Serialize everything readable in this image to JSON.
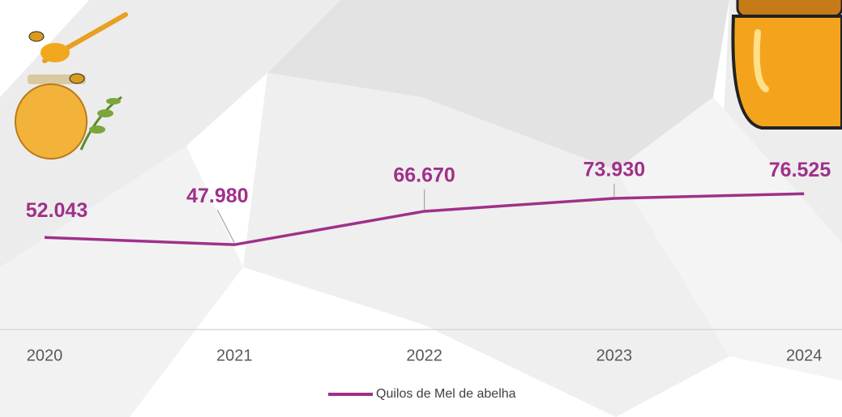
{
  "chart_data": {
    "type": "line",
    "categories": [
      "2020",
      "2021",
      "2022",
      "2023",
      "2024"
    ],
    "series": [
      {
        "name": "Quilos de Mel de abelha",
        "color": "#a0308a",
        "values": [
          52043,
          47980,
          66670,
          73930,
          76525
        ],
        "value_labels": [
          "52.043",
          "47.980",
          "66.670",
          "73.930",
          "76.525"
        ]
      }
    ],
    "ylim": [
      0,
      180000
    ],
    "legend": "bottom"
  }
}
